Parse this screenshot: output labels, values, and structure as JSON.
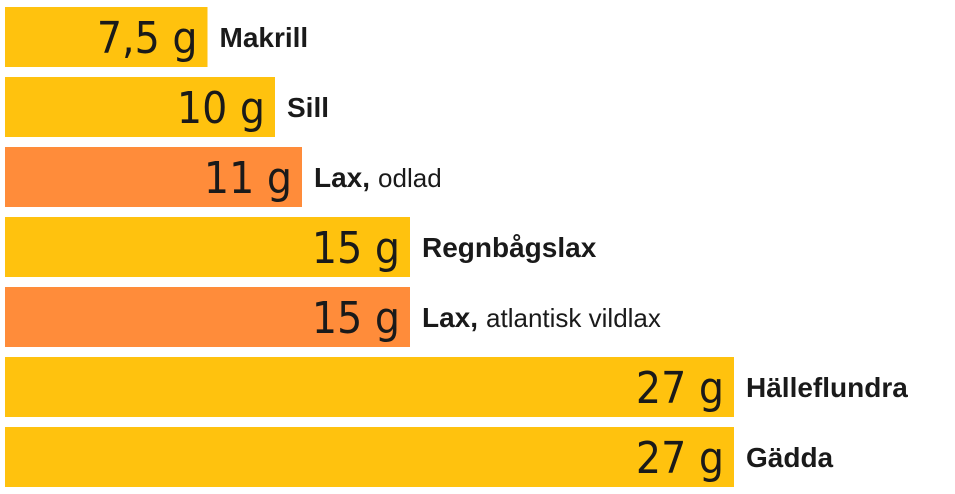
{
  "chart_data": {
    "type": "bar",
    "orientation": "horizontal",
    "unit": "g",
    "colors": {
      "default": "#FFC20E",
      "highlight": "#FF8C3A"
    },
    "bars": [
      {
        "value": 7.5,
        "value_label": "7,5 g",
        "name": "Makrill",
        "detail": "",
        "highlight": false
      },
      {
        "value": 10,
        "value_label": "10 g",
        "name": "Sill",
        "detail": "",
        "highlight": false
      },
      {
        "value": 11,
        "value_label": "11 g",
        "name": "Lax,",
        "detail": "odlad",
        "highlight": true
      },
      {
        "value": 15,
        "value_label": "15 g",
        "name": "Regnbågslax",
        "detail": "",
        "highlight": false
      },
      {
        "value": 15,
        "value_label": "15 g",
        "name": "Lax,",
        "detail": "atlantisk vildlax",
        "highlight": true
      },
      {
        "value": 27,
        "value_label": "27 g",
        "name": "Hälleflundra",
        "detail": "",
        "highlight": false
      },
      {
        "value": 27,
        "value_label": "27 g",
        "name": "Gädda",
        "detail": "",
        "highlight": false
      }
    ]
  }
}
